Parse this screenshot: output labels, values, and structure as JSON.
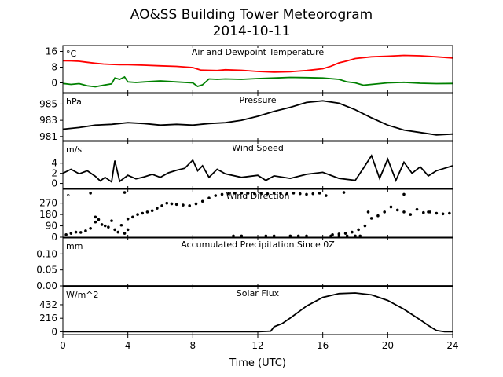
{
  "title": "AO&SS Building Tower Meteorogram",
  "subtitle": "2014-10-11",
  "chart_data": {
    "type": "line",
    "xlabel": "Time (UTC)",
    "xlim": [
      0,
      24
    ],
    "xticks": [
      "0",
      "4",
      "8",
      "12",
      "16",
      "20",
      "24"
    ],
    "xtick_values": [
      0,
      4,
      8,
      12,
      16,
      20,
      24
    ],
    "panels": [
      {
        "name": "temperature",
        "unit_label": "°C",
        "caption": "Air and Dewpoint Temperature",
        "ylim": [
          -5,
          19
        ],
        "yticks": [
          0,
          8,
          16
        ],
        "ytick_labels": [
          "0",
          "8",
          "16"
        ],
        "series": [
          {
            "color": "#ff0000",
            "x": [
              0,
              0.5,
              1,
              1.5,
              2,
              2.5,
              3,
              3.5,
              4,
              5,
              6,
              7,
              8,
              8.5,
              9,
              9.5,
              10,
              11,
              12,
              13,
              14,
              15,
              16,
              16.5,
              17,
              17.5,
              18,
              19,
              20,
              21,
              22,
              23,
              24
            ],
            "values": [
              11.3,
              11.2,
              11,
              10.5,
              10,
              9.6,
              9.4,
              9.3,
              9.3,
              9,
              8.7,
              8.4,
              7.8,
              6.5,
              6.4,
              6.3,
              6.7,
              6.4,
              5.8,
              5.5,
              5.7,
              6.3,
              7.2,
              8.5,
              10.2,
              11.2,
              12.4,
              13.3,
              13.6,
              14,
              13.8,
              13.3,
              12.7
            ]
          },
          {
            "color": "#008000",
            "x": [
              0,
              0.5,
              1,
              1.5,
              2,
              2.5,
              3,
              3.2,
              3.5,
              3.8,
              4,
              4.5,
              5,
              6,
              7,
              8,
              8.3,
              8.6,
              9,
              9.5,
              10,
              11,
              12,
              13,
              14,
              15,
              16,
              17,
              17.5,
              18,
              18.5,
              19,
              20,
              21,
              22,
              23,
              24
            ],
            "values": [
              -0.3,
              -0.8,
              -0.4,
              -1.5,
              -2,
              -1.2,
              -0.5,
              2.5,
              1.8,
              3,
              0.5,
              0.2,
              0.5,
              1,
              0.5,
              0,
              -1.8,
              -1,
              2,
              1.8,
              2,
              1.8,
              2.2,
              2.5,
              2.8,
              2.7,
              2.5,
              1.8,
              0.5,
              0,
              -1.2,
              -0.8,
              0,
              0.3,
              -0.2,
              -0.4,
              -0.3
            ]
          }
        ]
      },
      {
        "name": "pressure",
        "unit_label": "hPa",
        "caption": "Pressure",
        "ylim": [
          980.5,
          986.3
        ],
        "yticks": [
          981,
          983,
          985
        ],
        "ytick_labels": [
          "981",
          "983",
          "985"
        ],
        "series": [
          {
            "color": "#000000",
            "x": [
              0,
              1,
              2,
              3,
              4,
              5,
              6,
              7,
              8,
              9,
              10,
              11,
              12,
              13,
              14,
              15,
              16,
              17,
              18,
              19,
              20,
              21,
              22,
              23,
              24
            ],
            "values": [
              981.9,
              982.1,
              982.4,
              982.5,
              982.7,
              982.6,
              982.4,
              982.5,
              982.4,
              982.6,
              982.7,
              983,
              983.5,
              984.1,
              984.6,
              985.2,
              985.4,
              985.1,
              984.3,
              983.3,
              982.4,
              981.8,
              981.5,
              981.2,
              981.3
            ]
          }
        ]
      },
      {
        "name": "wind-speed",
        "unit_label": "m/s",
        "caption": "Wind Speed",
        "ylim": [
          -1,
          8.3
        ],
        "yticks": [
          0,
          2,
          4
        ],
        "ytick_labels": [
          "0",
          "2",
          "4"
        ],
        "series": [
          {
            "color": "#000000",
            "x": [
              0,
              0.5,
              1,
              1.5,
              2,
              2.3,
              2.6,
              3,
              3.2,
              3.5,
              4,
              4.5,
              5,
              5.5,
              6,
              6.5,
              7,
              7.5,
              8,
              8.3,
              8.6,
              9,
              9.5,
              10,
              11,
              12,
              12.5,
              13,
              14,
              15,
              16,
              17,
              18,
              18.5,
              19,
              19.5,
              20,
              20.5,
              21,
              21.5,
              22,
              22.5,
              23,
              23.5,
              24
            ],
            "values": [
              2,
              2.8,
              1.9,
              2.5,
              1.4,
              0.5,
              1.2,
              0.3,
              4.5,
              0.4,
              1.6,
              0.9,
              1.3,
              1.8,
              1.2,
              2.1,
              2.6,
              3,
              4.6,
              2.5,
              3.5,
              1.2,
              2.8,
              1.9,
              1.2,
              1.6,
              0.6,
              1.5,
              1,
              1.8,
              2.2,
              1,
              0.6,
              3,
              5.5,
              1,
              4.8,
              0.6,
              4.2,
              2,
              3.3,
              1.5,
              2.5,
              3,
              3.5
            ]
          }
        ]
      },
      {
        "name": "wind-direction",
        "unit_label": "°",
        "caption": "Wind Direction",
        "ylim": [
          0,
          380
        ],
        "yticks": [
          0,
          90,
          180,
          270
        ],
        "ytick_labels": [
          "0",
          "90",
          "180",
          "270"
        ],
        "marker": "dot",
        "series": [
          {
            "color": "#000000",
            "x": [
              0.2,
              0.5,
              0.8,
              1.1,
              1.4,
              1.7,
              2,
              2.2,
              2.4,
              2.6,
              2.8,
              3,
              3.2,
              3.4,
              3.6,
              3.8,
              4,
              4.3,
              4.6,
              4.9,
              5.2,
              5.5,
              5.8,
              6.1,
              6.4,
              6.7,
              7,
              7.4,
              7.8,
              8.2,
              8.6,
              9,
              9.4,
              9.8,
              10.2,
              10.6,
              11,
              11.4,
              11.8,
              12.2,
              12.6,
              13,
              13.4,
              13.8,
              14.2,
              14.6,
              15,
              15.4,
              15.8,
              16.2,
              16.6,
              17,
              17.4,
              17.8,
              18.2,
              18.6,
              19,
              19.4,
              19.8,
              20.2,
              20.6,
              21,
              21.4,
              21.8,
              22.2,
              22.6,
              23,
              23.4,
              23.8,
              10.5,
              11,
              12.5,
              13,
              14,
              14.5,
              15,
              16.5,
              17,
              17.5,
              18,
              18.3,
              2,
              1.7,
              3.8,
              4,
              17.3,
              18.8,
              21,
              22.5
            ],
            "values": [
              20,
              30,
              40,
              38,
              50,
              70,
              120,
              140,
              100,
              90,
              80,
              130,
              60,
              40,
              95,
              30,
              145,
              160,
              180,
              190,
              200,
              210,
              230,
              250,
              270,
              265,
              260,
              255,
              250,
              265,
              285,
              310,
              330,
              340,
              345,
              350,
              350,
              348,
              345,
              350,
              345,
              350,
              348,
              345,
              350,
              345,
              340,
              345,
              350,
              330,
              20,
              25,
              30,
              40,
              60,
              90,
              150,
              170,
              200,
              240,
              215,
              200,
              180,
              220,
              195,
              200,
              190,
              185,
              190,
              10,
              10,
              10,
              10,
              10,
              10,
              10,
              10,
              10,
              10,
              10,
              10,
              160,
              350,
              355,
              60,
              355,
              200,
              340,
              200
            ]
          }
        ]
      },
      {
        "name": "precipitation",
        "unit_label": "mm",
        "caption": "Accumulated Precipitation Since 0Z",
        "ylim": [
          0,
          0.15
        ],
        "yticks": [
          0,
          0.05,
          0.1
        ],
        "ytick_labels": [
          "0.00",
          "0.05",
          "0.10"
        ],
        "series": [
          {
            "color": "#000000",
            "x": [
              0,
              24
            ],
            "values": [
              0,
              0
            ]
          }
        ]
      },
      {
        "name": "solar-flux",
        "unit_label": "W/m^2",
        "caption": "Solar Flux",
        "ylim": [
          -45,
          720
        ],
        "yticks": [
          0,
          216,
          432
        ],
        "ytick_labels": [
          "0",
          "216",
          "432"
        ],
        "series": [
          {
            "color": "#000000",
            "x": [
              0,
              2,
              4,
              6,
              8,
              10,
              12,
              12.8,
              13,
              13.2,
              13.5,
              14,
              15,
              16,
              17,
              18,
              19,
              20,
              21,
              22,
              22.5,
              23,
              23.5,
              24
            ],
            "values": [
              0,
              0,
              0,
              0,
              0,
              0,
              0,
              10,
              80,
              100,
              130,
              220,
              410,
              550,
              610,
              620,
              590,
              500,
              360,
              190,
              100,
              20,
              0,
              0
            ]
          }
        ]
      }
    ]
  }
}
